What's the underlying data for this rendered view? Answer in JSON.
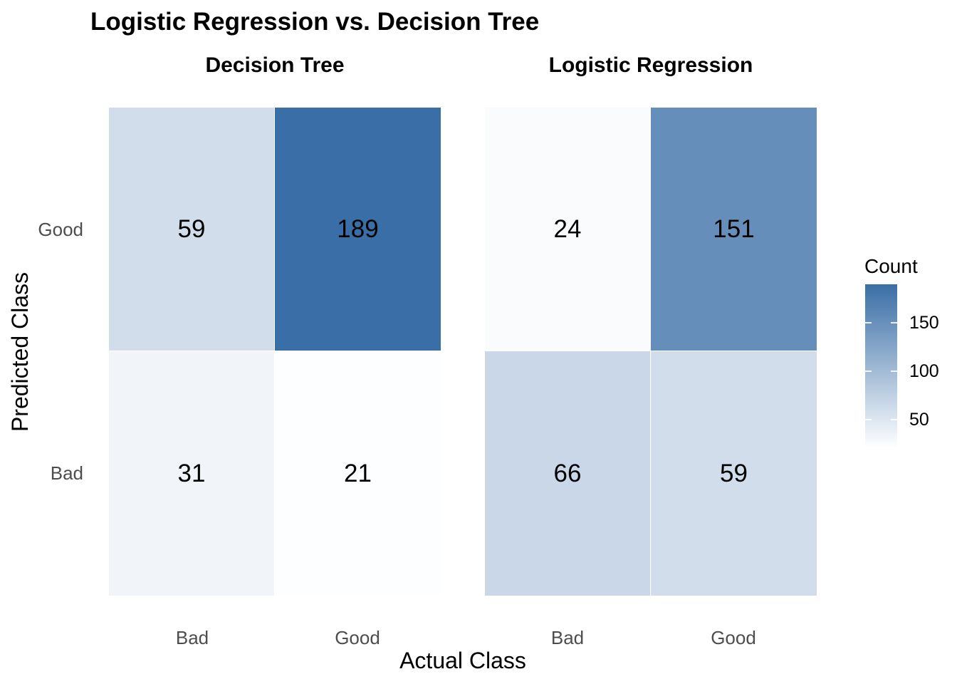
{
  "figure": {
    "title": "Logistic Regression vs. Decision Tree",
    "x_axis_title": "Actual Class",
    "y_axis_title": "Predicted Class",
    "y_tick_labels": [
      "Good",
      "Bad"
    ],
    "x_tick_labels": [
      "Bad",
      "Good",
      "Bad",
      "Good"
    ],
    "colors": {
      "background": "#FFFFFF",
      "tick_label_text": "#4D4D4D",
      "text": "#000000",
      "cell_separator": "#FFFFFF"
    }
  },
  "chart_data": {
    "type": "heatmap",
    "title": "Logistic Regression vs. Decision Tree",
    "xlabel": "Actual Class",
    "ylabel": "Predicted Class",
    "x_categories": [
      "Bad",
      "Good"
    ],
    "y_categories": [
      "Good",
      "Bad"
    ],
    "panels": [
      {
        "title": "Decision Tree",
        "cells": [
          {
            "row": "Good",
            "col": "Bad",
            "value": 59,
            "fill": "#D1DDEA"
          },
          {
            "row": "Good",
            "col": "Good",
            "value": 189,
            "fill": "#3A6EA6"
          },
          {
            "row": "Bad",
            "col": "Bad",
            "value": 31,
            "fill": "#F1F5FA"
          },
          {
            "row": "Bad",
            "col": "Good",
            "value": 21,
            "fill": "#FDFEFF"
          }
        ]
      },
      {
        "title": "Logistic Regression",
        "cells": [
          {
            "row": "Good",
            "col": "Bad",
            "value": 24,
            "fill": "#FAFBFD"
          },
          {
            "row": "Good",
            "col": "Good",
            "value": 151,
            "fill": "#668EBA"
          },
          {
            "row": "Bad",
            "col": "Bad",
            "value": 66,
            "fill": "#C9D7E8"
          },
          {
            "row": "Bad",
            "col": "Good",
            "value": 59,
            "fill": "#D1DDEA"
          }
        ]
      }
    ],
    "legend": {
      "title": "Count",
      "ticks": [
        150,
        100,
        50
      ],
      "min": 21,
      "max": 189,
      "low_color": "#FDFEFF",
      "high_color": "#3A6EA6",
      "position": "right"
    },
    "layout": {
      "grid": false,
      "panel_background": "#FFFFFF"
    }
  }
}
